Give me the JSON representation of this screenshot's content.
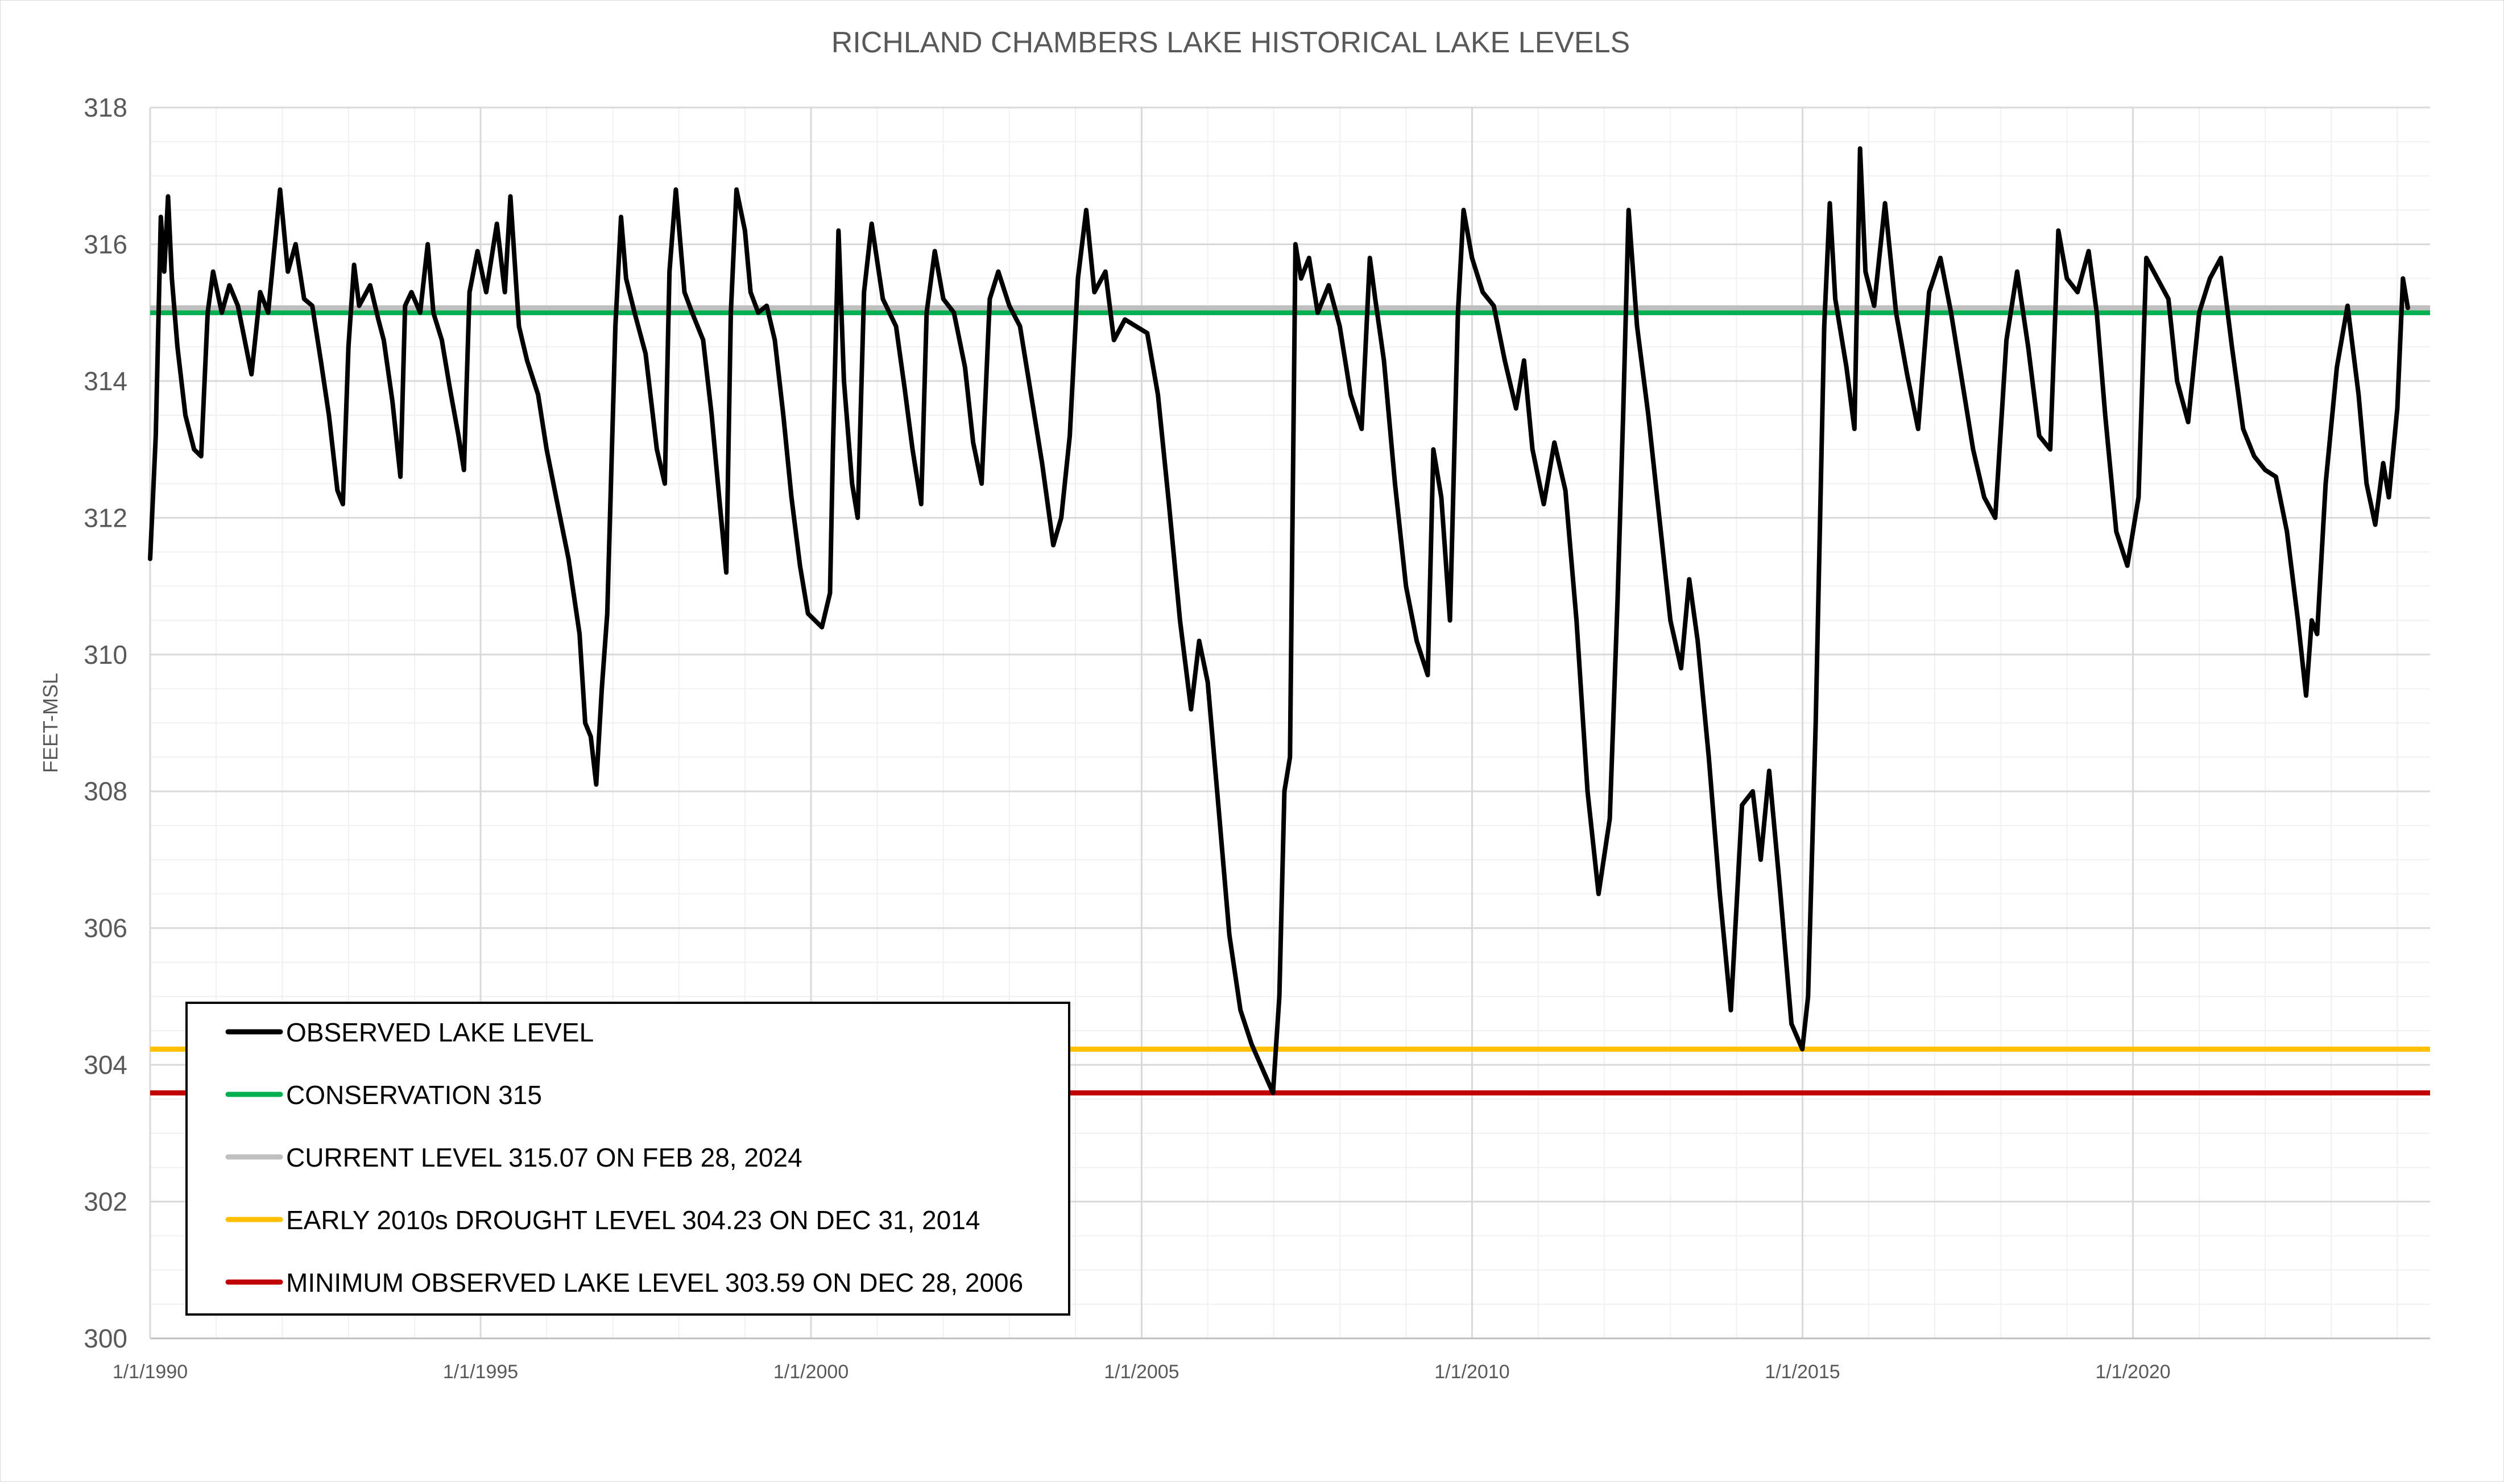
{
  "chart_data": {
    "type": "line",
    "title": "RICHLAND CHAMBERS LAKE HISTORICAL LAKE LEVELS",
    "xlabel": "",
    "ylabel": "FEET-MSL",
    "ylim": [
      300,
      318
    ],
    "xlim": [
      "1/1/1990",
      "6/30/2024"
    ],
    "yticks": [
      300,
      302,
      304,
      306,
      308,
      310,
      312,
      314,
      316,
      318
    ],
    "xticks": [
      "1/1/1990",
      "1/1/1995",
      "1/1/2000",
      "1/1/2005",
      "1/1/2010",
      "1/1/2015",
      "1/1/2020"
    ],
    "grid": true,
    "legend_position": "bottom-left",
    "series": [
      {
        "name": "OBSERVED LAKE LEVEL",
        "color": "#000000",
        "points": [
          [
            "1990-01-01",
            311.4
          ],
          [
            "1990-02-01",
            313.2
          ],
          [
            "1990-03-01",
            316.4
          ],
          [
            "1990-03-20",
            315.6
          ],
          [
            "1990-04-10",
            316.7
          ],
          [
            "1990-05-01",
            315.5
          ],
          [
            "1990-06-01",
            314.5
          ],
          [
            "1990-07-15",
            313.5
          ],
          [
            "1990-09-01",
            313.0
          ],
          [
            "1990-10-10",
            312.9
          ],
          [
            "1990-11-15",
            315.0
          ],
          [
            "1990-12-15",
            315.6
          ],
          [
            "1991-02-01",
            315.0
          ],
          [
            "1991-03-15",
            315.4
          ],
          [
            "1991-05-01",
            315.1
          ],
          [
            "1991-07-15",
            314.1
          ],
          [
            "1991-09-01",
            315.3
          ],
          [
            "1991-10-15",
            315.0
          ],
          [
            "1991-12-20",
            316.8
          ],
          [
            "1992-02-01",
            315.6
          ],
          [
            "1992-03-15",
            316.0
          ],
          [
            "1992-05-01",
            315.2
          ],
          [
            "1992-06-15",
            315.1
          ],
          [
            "1992-08-01",
            314.3
          ],
          [
            "1992-09-15",
            313.5
          ],
          [
            "1992-11-01",
            312.4
          ],
          [
            "1992-12-01",
            312.2
          ],
          [
            "1993-01-01",
            314.5
          ],
          [
            "1993-02-01",
            315.7
          ],
          [
            "1993-03-01",
            315.1
          ],
          [
            "1993-05-01",
            315.4
          ],
          [
            "1993-06-15",
            314.9
          ],
          [
            "1993-07-15",
            314.6
          ],
          [
            "1993-09-01",
            313.7
          ],
          [
            "1993-10-15",
            312.6
          ],
          [
            "1993-11-10",
            315.1
          ],
          [
            "1993-12-15",
            315.3
          ],
          [
            "1994-02-01",
            315.0
          ],
          [
            "1994-03-15",
            316.0
          ],
          [
            "1994-04-15",
            315.0
          ],
          [
            "1994-06-01",
            314.6
          ],
          [
            "1994-07-15",
            313.9
          ],
          [
            "1994-09-01",
            313.2
          ],
          [
            "1994-10-01",
            312.7
          ],
          [
            "1994-11-01",
            315.3
          ],
          [
            "1994-12-15",
            315.9
          ],
          [
            "1995-02-01",
            315.3
          ],
          [
            "1995-04-01",
            316.3
          ],
          [
            "1995-05-15",
            315.3
          ],
          [
            "1995-06-15",
            316.7
          ],
          [
            "1995-08-01",
            314.8
          ],
          [
            "1995-09-15",
            314.3
          ],
          [
            "1995-11-15",
            313.8
          ],
          [
            "1996-01-01",
            313.0
          ],
          [
            "1996-03-01",
            312.2
          ],
          [
            "1996-05-01",
            311.4
          ],
          [
            "1996-07-01",
            310.3
          ],
          [
            "1996-08-01",
            309.0
          ],
          [
            "1996-09-01",
            308.8
          ],
          [
            "1996-10-01",
            308.1
          ],
          [
            "1996-11-01",
            309.5
          ],
          [
            "1996-12-01",
            310.6
          ],
          [
            "1997-01-15",
            314.8
          ],
          [
            "1997-02-15",
            316.4
          ],
          [
            "1997-03-15",
            315.5
          ],
          [
            "1997-05-01",
            315.0
          ],
          [
            "1997-07-01",
            314.4
          ],
          [
            "1997-09-01",
            313.0
          ],
          [
            "1997-10-15",
            312.5
          ],
          [
            "1997-11-10",
            315.6
          ],
          [
            "1997-12-15",
            316.8
          ],
          [
            "1998-02-01",
            315.3
          ],
          [
            "1998-03-15",
            315.0
          ],
          [
            "1998-05-15",
            314.6
          ],
          [
            "1998-07-01",
            313.5
          ],
          [
            "1998-08-15",
            312.2
          ],
          [
            "1998-09-20",
            311.2
          ],
          [
            "1998-10-15",
            315.0
          ],
          [
            "1998-11-15",
            316.8
          ],
          [
            "1999-01-01",
            316.2
          ],
          [
            "1999-02-01",
            315.3
          ],
          [
            "1999-03-15",
            315.0
          ],
          [
            "1999-05-01",
            315.1
          ],
          [
            "1999-06-15",
            314.6
          ],
          [
            "1999-08-01",
            313.5
          ],
          [
            "1999-09-15",
            312.3
          ],
          [
            "1999-11-01",
            311.3
          ],
          [
            "1999-12-15",
            310.6
          ],
          [
            "2000-03-01",
            310.4
          ],
          [
            "2000-04-15",
            310.9
          ],
          [
            "2000-05-01",
            313.0
          ],
          [
            "2000-06-01",
            316.2
          ],
          [
            "2000-07-01",
            314.0
          ],
          [
            "2000-08-15",
            312.5
          ],
          [
            "2000-09-15",
            312.0
          ],
          [
            "2000-10-20",
            315.3
          ],
          [
            "2000-12-01",
            316.3
          ],
          [
            "2001-02-01",
            315.2
          ],
          [
            "2001-04-15",
            314.8
          ],
          [
            "2001-06-01",
            313.9
          ],
          [
            "2001-07-15",
            313.0
          ],
          [
            "2001-09-01",
            312.2
          ],
          [
            "2001-10-01",
            315.0
          ],
          [
            "2001-11-15",
            315.9
          ],
          [
            "2002-01-01",
            315.2
          ],
          [
            "2002-03-01",
            315.0
          ],
          [
            "2002-05-01",
            314.2
          ],
          [
            "2002-06-15",
            313.1
          ],
          [
            "2002-08-01",
            312.5
          ],
          [
            "2002-09-15",
            315.2
          ],
          [
            "2002-11-01",
            315.6
          ],
          [
            "2003-01-01",
            315.1
          ],
          [
            "2003-03-01",
            314.8
          ],
          [
            "2003-05-01",
            313.8
          ],
          [
            "2003-07-01",
            312.8
          ],
          [
            "2003-09-01",
            311.6
          ],
          [
            "2003-10-15",
            312.0
          ],
          [
            "2003-12-01",
            313.2
          ],
          [
            "2004-01-15",
            315.5
          ],
          [
            "2004-03-01",
            316.5
          ],
          [
            "2004-04-15",
            315.3
          ],
          [
            "2004-06-15",
            315.6
          ],
          [
            "2004-08-01",
            314.6
          ],
          [
            "2004-10-01",
            314.9
          ],
          [
            "2004-12-01",
            314.8
          ],
          [
            "2005-02-01",
            314.7
          ],
          [
            "2005-04-01",
            313.8
          ],
          [
            "2005-06-01",
            312.2
          ],
          [
            "2005-08-01",
            310.5
          ],
          [
            "2005-10-01",
            309.2
          ],
          [
            "2005-11-15",
            310.2
          ],
          [
            "2006-01-01",
            309.6
          ],
          [
            "2006-03-01",
            307.8
          ],
          [
            "2006-05-01",
            305.9
          ],
          [
            "2006-07-01",
            304.8
          ],
          [
            "2006-09-01",
            304.3
          ],
          [
            "2006-12-28",
            303.59
          ],
          [
            "2007-02-01",
            305.0
          ],
          [
            "2007-03-01",
            308.0
          ],
          [
            "2007-04-01",
            308.5
          ],
          [
            "2007-05-01",
            316.0
          ],
          [
            "2007-06-01",
            315.5
          ],
          [
            "2007-07-15",
            315.8
          ],
          [
            "2007-09-01",
            315.0
          ],
          [
            "2007-11-01",
            315.4
          ],
          [
            "2008-01-01",
            314.8
          ],
          [
            "2008-03-01",
            313.8
          ],
          [
            "2008-05-01",
            313.3
          ],
          [
            "2008-06-15",
            315.8
          ],
          [
            "2008-07-15",
            315.2
          ],
          [
            "2008-09-01",
            314.3
          ],
          [
            "2008-11-01",
            312.5
          ],
          [
            "2009-01-01",
            311.0
          ],
          [
            "2009-03-01",
            310.2
          ],
          [
            "2009-05-01",
            309.7
          ],
          [
            "2009-06-01",
            313.0
          ],
          [
            "2009-07-15",
            312.3
          ],
          [
            "2009-09-01",
            310.5
          ],
          [
            "2009-10-15",
            315.0
          ],
          [
            "2009-11-15",
            316.5
          ],
          [
            "2010-01-01",
            315.8
          ],
          [
            "2010-03-01",
            315.3
          ],
          [
            "2010-05-01",
            315.1
          ],
          [
            "2010-07-01",
            314.3
          ],
          [
            "2010-09-01",
            313.6
          ],
          [
            "2010-10-15",
            314.3
          ],
          [
            "2010-12-01",
            313.0
          ],
          [
            "2011-02-01",
            312.2
          ],
          [
            "2011-04-01",
            313.1
          ],
          [
            "2011-06-01",
            312.4
          ],
          [
            "2011-08-01",
            310.5
          ],
          [
            "2011-10-01",
            308.0
          ],
          [
            "2011-12-01",
            306.5
          ],
          [
            "2012-02-01",
            307.6
          ],
          [
            "2012-03-15",
            310.8
          ],
          [
            "2012-04-15",
            313.5
          ],
          [
            "2012-05-15",
            316.5
          ],
          [
            "2012-07-01",
            314.8
          ],
          [
            "2012-09-01",
            313.5
          ],
          [
            "2012-11-01",
            312.0
          ],
          [
            "2013-01-01",
            310.5
          ],
          [
            "2013-03-01",
            309.8
          ],
          [
            "2013-04-15",
            311.1
          ],
          [
            "2013-06-01",
            310.2
          ],
          [
            "2013-08-01",
            308.5
          ],
          [
            "2013-10-01",
            306.5
          ],
          [
            "2013-12-01",
            304.8
          ],
          [
            "2014-02-01",
            307.8
          ],
          [
            "2014-04-01",
            308.0
          ],
          [
            "2014-05-15",
            307.0
          ],
          [
            "2014-07-01",
            308.3
          ],
          [
            "2014-09-01",
            306.5
          ],
          [
            "2014-11-01",
            304.6
          ],
          [
            "2014-12-31",
            304.23
          ],
          [
            "2015-02-01",
            305.0
          ],
          [
            "2015-03-15",
            309.0
          ],
          [
            "2015-05-01",
            314.8
          ],
          [
            "2015-06-01",
            316.6
          ],
          [
            "2015-07-01",
            315.2
          ],
          [
            "2015-09-01",
            314.2
          ],
          [
            "2015-10-15",
            313.3
          ],
          [
            "2015-11-15",
            317.4
          ],
          [
            "2015-12-15",
            315.6
          ],
          [
            "2016-02-01",
            315.1
          ],
          [
            "2016-04-01",
            316.6
          ],
          [
            "2016-06-01",
            315.0
          ],
          [
            "2016-08-01",
            314.1
          ],
          [
            "2016-10-01",
            313.3
          ],
          [
            "2016-12-01",
            315.3
          ],
          [
            "2017-02-01",
            315.8
          ],
          [
            "2017-04-01",
            315.0
          ],
          [
            "2017-06-01",
            314.0
          ],
          [
            "2017-08-01",
            313.0
          ],
          [
            "2017-10-01",
            312.3
          ],
          [
            "2017-12-01",
            312.0
          ],
          [
            "2018-02-01",
            314.6
          ],
          [
            "2018-04-01",
            315.6
          ],
          [
            "2018-06-01",
            314.5
          ],
          [
            "2018-08-01",
            313.2
          ],
          [
            "2018-10-01",
            313.0
          ],
          [
            "2018-11-15",
            316.2
          ],
          [
            "2019-01-01",
            315.5
          ],
          [
            "2019-03-01",
            315.3
          ],
          [
            "2019-05-01",
            315.9
          ],
          [
            "2019-06-15",
            315.0
          ],
          [
            "2019-08-01",
            313.5
          ],
          [
            "2019-10-01",
            311.8
          ],
          [
            "2019-12-01",
            311.3
          ],
          [
            "2020-02-01",
            312.3
          ],
          [
            "2020-03-15",
            315.8
          ],
          [
            "2020-05-15",
            315.5
          ],
          [
            "2020-07-15",
            315.2
          ],
          [
            "2020-09-01",
            314.0
          ],
          [
            "2020-11-01",
            313.4
          ],
          [
            "2021-01-01",
            315.0
          ],
          [
            "2021-03-01",
            315.5
          ],
          [
            "2021-05-01",
            315.8
          ],
          [
            "2021-07-01",
            314.5
          ],
          [
            "2021-09-01",
            313.3
          ],
          [
            "2021-11-01",
            312.9
          ],
          [
            "2022-01-01",
            312.7
          ],
          [
            "2022-03-01",
            312.6
          ],
          [
            "2022-05-01",
            311.8
          ],
          [
            "2022-07-01",
            310.5
          ],
          [
            "2022-08-15",
            309.4
          ],
          [
            "2022-09-15",
            310.5
          ],
          [
            "2022-10-15",
            310.3
          ],
          [
            "2022-12-01",
            312.5
          ],
          [
            "2023-02-01",
            314.2
          ],
          [
            "2023-04-01",
            315.1
          ],
          [
            "2023-06-01",
            313.8
          ],
          [
            "2023-07-15",
            312.5
          ],
          [
            "2023-09-01",
            311.9
          ],
          [
            "2023-10-15",
            312.8
          ],
          [
            "2023-11-15",
            312.3
          ],
          [
            "2024-01-01",
            313.6
          ],
          [
            "2024-02-01",
            315.5
          ],
          [
            "2024-02-28",
            315.07
          ]
        ]
      },
      {
        "name": "CONSERVATION 315",
        "color": "#00b050",
        "y": 315
      },
      {
        "name": "CURRENT LEVEL 315.07 ON FEB 28, 2024",
        "color": "#bfbfbf",
        "y": 315.07
      },
      {
        "name": "EARLY 2010s DROUGHT LEVEL 304.23 ON DEC 31, 2014",
        "color": "#ffc000",
        "y": 304.23
      },
      {
        "name": "MINIMUM OBSERVED LAKE LEVEL 303.59 ON DEC 28, 2006",
        "color": "#c00000",
        "y": 303.59
      }
    ]
  }
}
